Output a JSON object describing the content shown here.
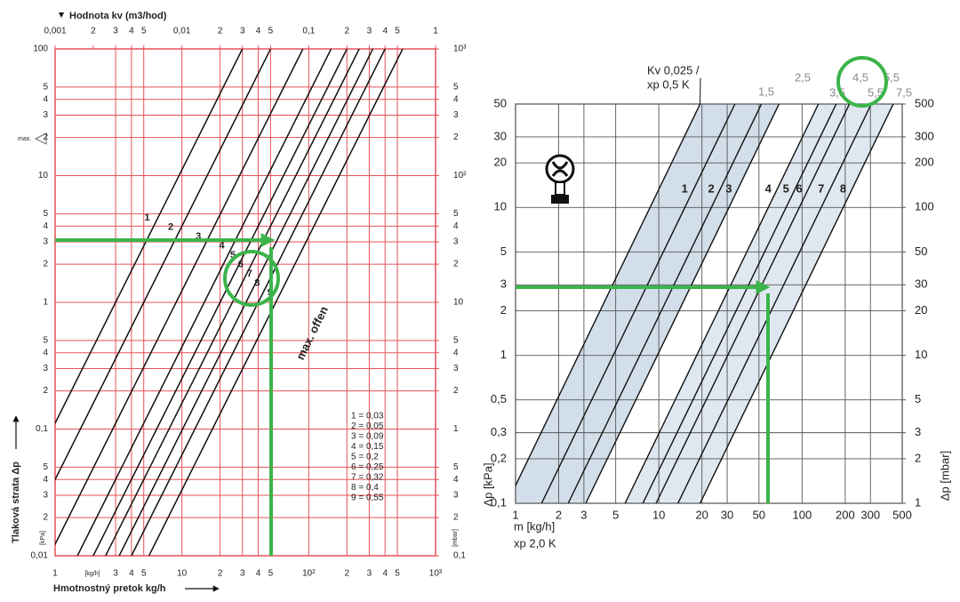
{
  "chart_data": [
    {
      "type": "line",
      "title": "Hodnota kv (m3/hod)",
      "x_label": "Hmotnostný pretok kg/h",
      "y_label": "Tlaková strata Δp",
      "x_unit": "[kg/h]",
      "y_unit": "[kPa]",
      "y2_unit": "[mbar]",
      "xscale": "log",
      "yscale": "log",
      "grid": true,
      "grid_color": "#e8505a",
      "xlim": [
        1,
        1000
      ],
      "xticks": [
        1,
        3,
        4,
        5,
        10,
        {
          "value": 20,
          "label": "2"
        },
        {
          "value": 30,
          "label": "3"
        },
        {
          "value": 40,
          "label": "4"
        },
        {
          "value": 50,
          "label": "5"
        },
        {
          "value": 100,
          "label": "10²"
        },
        {
          "value": 200,
          "label": "2"
        },
        {
          "value": 300,
          "label": "3"
        },
        {
          "value": 400,
          "label": "4"
        },
        {
          "value": 500,
          "label": "5"
        },
        {
          "value": 1000,
          "label": "10³"
        }
      ],
      "x2lim": [
        0.001,
        1
      ],
      "x2ticks": [
        {
          "value": 0.001,
          "label": "0,001"
        },
        {
          "value": 0.002,
          "label": "2"
        },
        {
          "value": 0.003,
          "label": "3"
        },
        {
          "value": 0.004,
          "label": "4"
        },
        {
          "value": 0.005,
          "label": "5"
        },
        {
          "value": 0.01,
          "label": "0,01"
        },
        {
          "value": 0.02,
          "label": "2"
        },
        {
          "value": 0.03,
          "label": "3"
        },
        {
          "value": 0.04,
          "label": "4"
        },
        {
          "value": 0.05,
          "label": "5"
        },
        {
          "value": 0.1,
          "label": "0,1"
        },
        {
          "value": 0.2,
          "label": "2"
        },
        {
          "value": 0.3,
          "label": "3"
        },
        {
          "value": 0.4,
          "label": "4"
        },
        {
          "value": 0.5,
          "label": "5"
        },
        1
      ],
      "ylim": [
        0.01,
        100
      ],
      "yticks": [
        {
          "value": 0.01,
          "label": "0,01"
        },
        {
          "value": 0.02,
          "label": "2"
        },
        {
          "value": 0.03,
          "label": "3"
        },
        {
          "value": 0.04,
          "label": "4"
        },
        {
          "value": 0.05,
          "label": "5"
        },
        {
          "value": 0.1,
          "label": "0,1"
        },
        {
          "value": 0.2,
          "label": "2"
        },
        {
          "value": 0.3,
          "label": "3"
        },
        {
          "value": 0.4,
          "label": "4"
        },
        {
          "value": 0.5,
          "label": "5"
        },
        1,
        2,
        3,
        4,
        5,
        10,
        {
          "value": 20,
          "label": "2"
        },
        {
          "value": 30,
          "label": "3"
        },
        {
          "value": 40,
          "label": "4"
        },
        {
          "value": 50,
          "label": "5"
        },
        100
      ],
      "y2lim": [
        0.1,
        1000
      ],
      "y2ticks": [
        {
          "value": 0.1,
          "label": "0,1"
        },
        {
          "value": 0.2,
          "label": "2"
        },
        {
          "value": 0.3,
          "label": "3"
        },
        {
          "value": 0.4,
          "label": "4"
        },
        {
          "value": 0.5,
          "label": "5"
        },
        1,
        2,
        3,
        4,
        5,
        10,
        {
          "value": 20,
          "label": "2"
        },
        {
          "value": 30,
          "label": "3"
        },
        {
          "value": 40,
          "label": "4"
        },
        {
          "value": 50,
          "label": "5"
        },
        {
          "value": 100,
          "label": "10²"
        },
        {
          "value": 200,
          "label": "2"
        },
        {
          "value": 300,
          "label": "3"
        },
        {
          "value": 400,
          "label": "4"
        },
        {
          "value": 500,
          "label": "5"
        },
        {
          "value": 1000,
          "label": "10³"
        }
      ],
      "series": [
        {
          "name": "1",
          "color": "#111111",
          "x": [
            0.3,
            30
          ],
          "values": [
            0.01,
            100
          ]
        },
        {
          "name": "2",
          "color": "#111111",
          "x": [
            0.5,
            50
          ],
          "values": [
            0.01,
            100
          ]
        },
        {
          "name": "3",
          "color": "#111111",
          "x": [
            0.9,
            90
          ],
          "values": [
            0.01,
            100
          ]
        },
        {
          "name": "4",
          "color": "#111111",
          "x": [
            1.5,
            150
          ],
          "values": [
            0.01,
            100
          ]
        },
        {
          "name": "5",
          "color": "#111111",
          "x": [
            2,
            200
          ],
          "values": [
            0.01,
            100
          ]
        },
        {
          "name": "6",
          "color": "#111111",
          "x": [
            2.5,
            250
          ],
          "values": [
            0.01,
            100
          ]
        },
        {
          "name": "7",
          "color": "#111111",
          "x": [
            3.2,
            320
          ],
          "values": [
            0.01,
            100
          ]
        },
        {
          "name": "8",
          "color": "#111111",
          "x": [
            4,
            400
          ],
          "values": [
            0.01,
            100
          ]
        },
        {
          "name": "9",
          "color": "#111111",
          "x": [
            5.5,
            550
          ],
          "values": [
            0.01,
            100
          ]
        }
      ],
      "legend_items": [
        "1 = 0,03",
        "2 = 0,05",
        "3 = 0,09",
        "4 = 0,15",
        "5 = 0,2",
        "6 = 0,25",
        "7 = 0,32",
        "8 = 0,4",
        "9 = 0,55"
      ],
      "annotations": [
        "max. offen",
        "max."
      ]
    },
    {
      "type": "line",
      "x_label": "m [kg/h]",
      "x_sublabel": "xp 2,0 K",
      "y_label": "Δp [kPa]",
      "y2_label": "Δp [mbar]",
      "xscale": "log",
      "yscale": "log",
      "grid": true,
      "grid_color": "#555555",
      "xlim": [
        1,
        500
      ],
      "xticks": [
        1,
        2,
        3,
        5,
        10,
        20,
        30,
        50,
        100,
        200,
        300,
        500
      ],
      "ylim": [
        0.1,
        50
      ],
      "yticks": [
        {
          "value": 0.1,
          "label": "0,1"
        },
        {
          "value": 0.2,
          "label": "0,2"
        },
        {
          "value": 0.3,
          "label": "0,3"
        },
        {
          "value": 0.5,
          "label": "0,5"
        },
        1,
        2,
        3,
        5,
        10,
        20,
        30,
        50
      ],
      "y2lim": [
        1,
        500
      ],
      "y2ticks": [
        1,
        2,
        3,
        5,
        10,
        20,
        30,
        50,
        100,
        200,
        300,
        500
      ],
      "reference_line": {
        "label": [
          "Kv 0,025 /",
          "xp 0,5 K"
        ],
        "color": "#111111",
        "x": [
          0.87,
          19.4
        ],
        "values": [
          0.1,
          50
        ]
      },
      "series": [
        {
          "name": "1",
          "color": "#111111",
          "x": [
            1.52,
            34
          ],
          "values": [
            0.1,
            50
          ]
        },
        {
          "name": "2",
          "color": "#111111",
          "x": [
            2.33,
            52
          ],
          "values": [
            0.1,
            50
          ]
        },
        {
          "name": "3",
          "color": "#111111",
          "x": [
            3.09,
            69
          ],
          "values": [
            0.1,
            50
          ]
        },
        {
          "name": "4",
          "color": "#111111",
          "x": [
            5.81,
            130
          ],
          "values": [
            0.1,
            50
          ]
        },
        {
          "name": "5",
          "color": "#111111",
          "x": [
            7.74,
            173
          ],
          "values": [
            0.1,
            50
          ]
        },
        {
          "name": "6",
          "color": "#111111",
          "x": [
            9.57,
            214
          ],
          "values": [
            0.1,
            50
          ]
        },
        {
          "name": "7",
          "color": "#111111",
          "x": [
            13.6,
            304
          ],
          "values": [
            0.1,
            50
          ]
        },
        {
          "name": "8",
          "color": "#111111",
          "x": [
            19.4,
            433
          ],
          "values": [
            0.1,
            50
          ]
        }
      ],
      "top_labels": [
        "1,5",
        "2,5",
        "3,5",
        "4,5",
        "5,5",
        "5,5",
        "7,5"
      ]
    }
  ]
}
